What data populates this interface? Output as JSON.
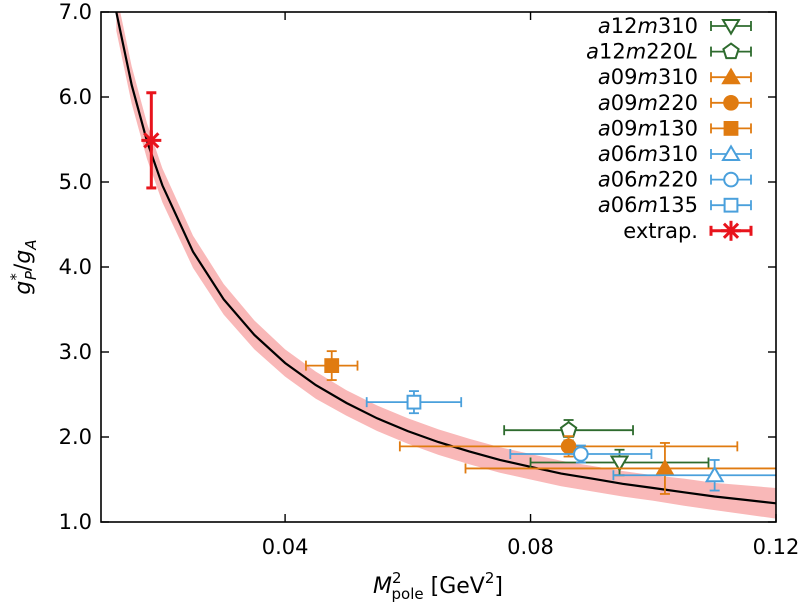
{
  "chart_data": {
    "type": "scatter",
    "xlabel": {
      "main": "M",
      "sup": "2",
      "sub": "pole",
      "unit_prefix": " [GeV",
      "unit_sup": "2",
      "unit_suffix": "]"
    },
    "ylabel": {
      "g": "g",
      "sup": "*",
      "sub": "P",
      "slash": "/",
      "g2": "g",
      "sub2": "A"
    },
    "xlim": [
      0.01,
      0.12
    ],
    "ylim": [
      1.0,
      7.0
    ],
    "x_ticks": [
      0.04,
      0.08,
      0.12
    ],
    "x_tick_labels": [
      "0.04",
      "0.08",
      "0.12"
    ],
    "y_ticks": [
      1.0,
      2.0,
      3.0,
      4.0,
      5.0,
      6.0,
      7.0
    ],
    "y_tick_labels": [
      "1.0",
      "2.0",
      "3.0",
      "4.0",
      "5.0",
      "6.0",
      "7.0"
    ],
    "grid": false,
    "legend_position": "top-right",
    "fit": {
      "label": "",
      "color": "#000000",
      "band_color": "#f9b8b8",
      "x": [
        0.0125,
        0.015,
        0.0175,
        0.02,
        0.025,
        0.03,
        0.035,
        0.04,
        0.045,
        0.05,
        0.055,
        0.06,
        0.065,
        0.07,
        0.075,
        0.08,
        0.085,
        0.09,
        0.095,
        0.1,
        0.105,
        0.11,
        0.115,
        0.12
      ],
      "y": [
        7.0,
        6.14,
        5.48,
        4.96,
        4.18,
        3.62,
        3.2,
        2.87,
        2.61,
        2.4,
        2.22,
        2.07,
        1.94,
        1.83,
        1.73,
        1.65,
        1.57,
        1.51,
        1.45,
        1.4,
        1.35,
        1.3,
        1.26,
        1.22
      ],
      "band_half_width": [
        0.22,
        0.22,
        0.21,
        0.2,
        0.19,
        0.18,
        0.17,
        0.16,
        0.16,
        0.15,
        0.15,
        0.15,
        0.15,
        0.15,
        0.15,
        0.15,
        0.15,
        0.15,
        0.15,
        0.15,
        0.16,
        0.16,
        0.17,
        0.18
      ]
    },
    "series": [
      {
        "name": "a12m310",
        "label_parts": [
          {
            "t": "a",
            "i": true
          },
          {
            "t": "12",
            "i": false
          },
          {
            "t": "m",
            "i": true
          },
          {
            "t": "310",
            "i": false
          }
        ],
        "marker": "triangle-down",
        "filled": false,
        "color": "#2e6b2e",
        "x": 0.0945,
        "y": 1.7,
        "xerr": 0.0145,
        "yerr": 0.15
      },
      {
        "name": "a12m220L",
        "label_parts": [
          {
            "t": "a",
            "i": true
          },
          {
            "t": "12",
            "i": false
          },
          {
            "t": "m",
            "i": true
          },
          {
            "t": "220",
            "i": false
          },
          {
            "t": "L",
            "i": true
          }
        ],
        "marker": "pentagon",
        "filled": false,
        "color": "#2e6b2e",
        "x": 0.0862,
        "y": 2.08,
        "xerr": 0.0105,
        "yerr": 0.12
      },
      {
        "name": "a09m310",
        "label_parts": [
          {
            "t": "a",
            "i": true
          },
          {
            "t": "09",
            "i": false
          },
          {
            "t": "m",
            "i": true
          },
          {
            "t": "310",
            "i": false
          }
        ],
        "marker": "triangle-up",
        "filled": true,
        "color": "#e07b10",
        "x": 0.1019,
        "y": 1.63,
        "xerr": 0.0325,
        "yerr": 0.3
      },
      {
        "name": "a09m220",
        "label_parts": [
          {
            "t": "a",
            "i": true
          },
          {
            "t": "09",
            "i": false
          },
          {
            "t": "m",
            "i": true
          },
          {
            "t": "220",
            "i": false
          }
        ],
        "marker": "circle",
        "filled": true,
        "color": "#e07b10",
        "x": 0.0862,
        "y": 1.89,
        "xerr": 0.0275,
        "yerr": 0.12
      },
      {
        "name": "a09m130",
        "label_parts": [
          {
            "t": "a",
            "i": true
          },
          {
            "t": "09",
            "i": false
          },
          {
            "t": "m",
            "i": true
          },
          {
            "t": "130",
            "i": false
          }
        ],
        "marker": "square",
        "filled": true,
        "color": "#e07b10",
        "x": 0.0476,
        "y": 2.84,
        "xerr": 0.0042,
        "yerr": 0.17
      },
      {
        "name": "a06m310",
        "label_parts": [
          {
            "t": "a",
            "i": true
          },
          {
            "t": "06",
            "i": false
          },
          {
            "t": "m",
            "i": true
          },
          {
            "t": "310",
            "i": false
          }
        ],
        "marker": "triangle-up",
        "filled": false,
        "color": "#4aa0dc",
        "x": 0.11,
        "y": 1.55,
        "xerr": 0.0165,
        "yerr": 0.18
      },
      {
        "name": "a06m220",
        "label_parts": [
          {
            "t": "a",
            "i": true
          },
          {
            "t": "06",
            "i": false
          },
          {
            "t": "m",
            "i": true
          },
          {
            "t": "220",
            "i": false
          }
        ],
        "marker": "circle",
        "filled": false,
        "color": "#4aa0dc",
        "x": 0.0882,
        "y": 1.8,
        "xerr": 0.0115,
        "yerr": 0.1
      },
      {
        "name": "a06m135",
        "label_parts": [
          {
            "t": "a",
            "i": true
          },
          {
            "t": "06",
            "i": false
          },
          {
            "t": "m",
            "i": true
          },
          {
            "t": "135",
            "i": false
          }
        ],
        "marker": "square",
        "filled": false,
        "color": "#4aa0dc",
        "x": 0.061,
        "y": 2.41,
        "xerr": 0.0077,
        "yerr": 0.13
      },
      {
        "name": "extrap.",
        "label_parts": [
          {
            "t": "extrap.",
            "i": false
          }
        ],
        "marker": "star",
        "filled": true,
        "color": "#e8141c",
        "x": 0.0182,
        "y": 5.49,
        "xerr": 0.0,
        "yerr": 0.56
      }
    ]
  }
}
